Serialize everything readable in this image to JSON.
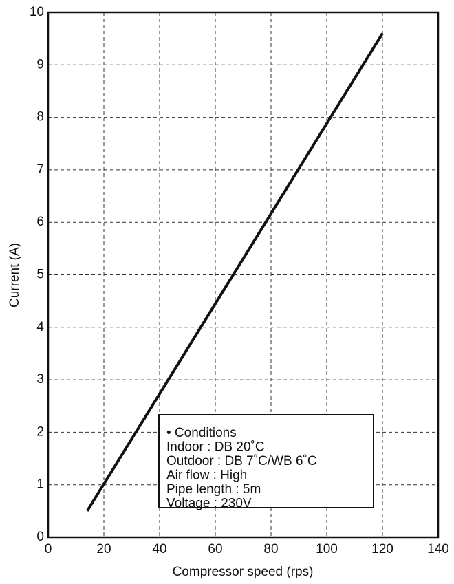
{
  "chart_data": {
    "type": "line",
    "x_label": "Compressor speed (rps)",
    "y_label": "Current (A)",
    "x": [
      14,
      120
    ],
    "series": [
      {
        "values": [
          0.5,
          9.6
        ],
        "color": "#111111"
      }
    ],
    "xlim": [
      0,
      140
    ],
    "xticks": [
      0,
      20,
      40,
      60,
      80,
      100,
      120,
      140
    ],
    "ylim": [
      0,
      10
    ],
    "yticks": [
      0,
      1,
      2,
      3,
      4,
      5,
      6,
      7,
      8,
      9,
      10
    ],
    "grid": true,
    "annotation": [
      "• Conditions",
      "Indoor : DB 20˚C",
      "Outdoor : DB 7˚C/WB 6˚C",
      "Air flow : High",
      "Pipe length : 5m",
      "Voltage : 230V"
    ]
  }
}
